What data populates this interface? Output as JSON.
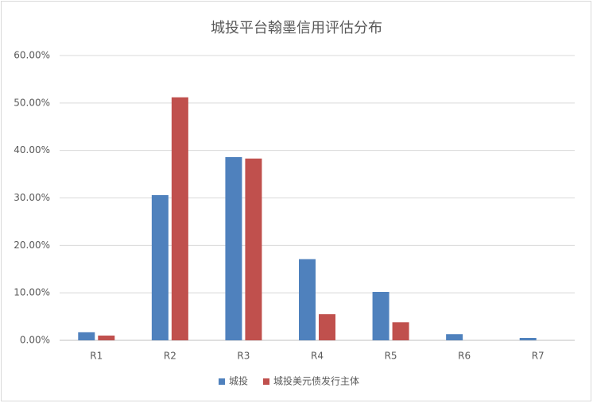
{
  "chart_data": {
    "type": "bar",
    "title": "城投平台翰墨信用评估分布",
    "categories": [
      "R1",
      "R2",
      "R3",
      "R4",
      "R5",
      "R6",
      "R7"
    ],
    "series": [
      {
        "name": "城投",
        "color": "#4f81bd",
        "values": [
          1.7,
          30.6,
          38.6,
          17.1,
          10.2,
          1.3,
          0.5
        ]
      },
      {
        "name": "城投美元债发行主体",
        "color": "#c0504d",
        "values": [
          1.0,
          51.2,
          38.3,
          5.5,
          3.8,
          0,
          0
        ]
      }
    ],
    "ylim": [
      0,
      60
    ],
    "yticks": [
      {
        "value": 0,
        "label": "0.00%"
      },
      {
        "value": 10,
        "label": "10.00%"
      },
      {
        "value": 20,
        "label": "20.00%"
      },
      {
        "value": 30,
        "label": "30.00%"
      },
      {
        "value": 40,
        "label": "40.00%"
      },
      {
        "value": 50,
        "label": "50.00%"
      },
      {
        "value": 60,
        "label": "60.00%"
      }
    ],
    "grid": true,
    "legend": "bottom"
  }
}
